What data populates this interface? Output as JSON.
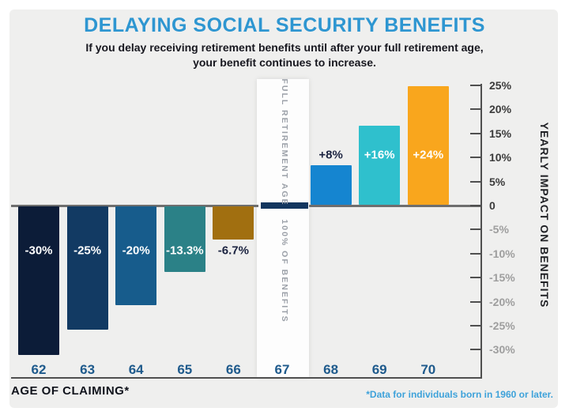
{
  "title": "DELAYING SOCIAL SECURITY BENEFITS",
  "subtitle_line1": "If you delay receiving retirement benefits until after your full retirement age,",
  "subtitle_line2": "your benefit continues to increase.",
  "chart_data": {
    "type": "bar",
    "title": "Delaying Social Security Benefits",
    "categories": [
      "62",
      "63",
      "64",
      "65",
      "66",
      "67",
      "68",
      "69",
      "70"
    ],
    "values": [
      -30,
      -25,
      -20,
      -13.3,
      -6.7,
      0,
      8,
      16,
      24
    ],
    "bar_labels": [
      "-30%",
      "-25%",
      "-20%",
      "-13.3%",
      "-6.7%",
      "",
      "+8%",
      "+16%",
      "+24%"
    ],
    "bar_colors": [
      "#0c1c38",
      "#123a63",
      "#175c8c",
      "#2b8187",
      "#a16f10",
      "#12355e",
      "#1585d0",
      "#2fc0cd",
      "#f9a61d"
    ],
    "label_colors": [
      "#ffffff",
      "#ffffff",
      "#ffffff",
      "#ffffff",
      "#1b2340",
      "",
      "#1b2340",
      "#ffffff",
      "#ffffff"
    ],
    "xlabel": "AGE OF CLAIMING*",
    "ylabel": "YEARLY IMPACT ON BENEFITS",
    "ylim": [
      -32.5,
      25
    ],
    "grid": "off",
    "y_ticks": [
      {
        "value": 25,
        "label": "25%"
      },
      {
        "value": 20,
        "label": "20%"
      },
      {
        "value": 15,
        "label": "15%"
      },
      {
        "value": 10,
        "label": "10%"
      },
      {
        "value": 5,
        "label": "5%"
      },
      {
        "value": 0,
        "label": "0"
      },
      {
        "value": -5,
        "label": "-5%"
      },
      {
        "value": -10,
        "label": "-10%"
      },
      {
        "value": -15,
        "label": "-15%"
      },
      {
        "value": -20,
        "label": "-20%"
      },
      {
        "value": -25,
        "label": "-25%"
      },
      {
        "value": -30,
        "label": "-30%"
      }
    ],
    "fra_band": {
      "category": "67",
      "top_label": "FULL RETIREMENT AGE",
      "bottom_label": "100% OF BENEFITS"
    },
    "footnote": "*Data for individuals born in 1960 or later."
  },
  "colors": {
    "panel_bg": "#efefee",
    "title_blue": "#2e96d1",
    "age_label_blue": "#1e5a8c",
    "tick_positive": "#3b3b3b",
    "tick_negative": "#9e9e9e",
    "footnote_blue": "#3ea2da",
    "axis_gray": "#4f4f4f"
  }
}
